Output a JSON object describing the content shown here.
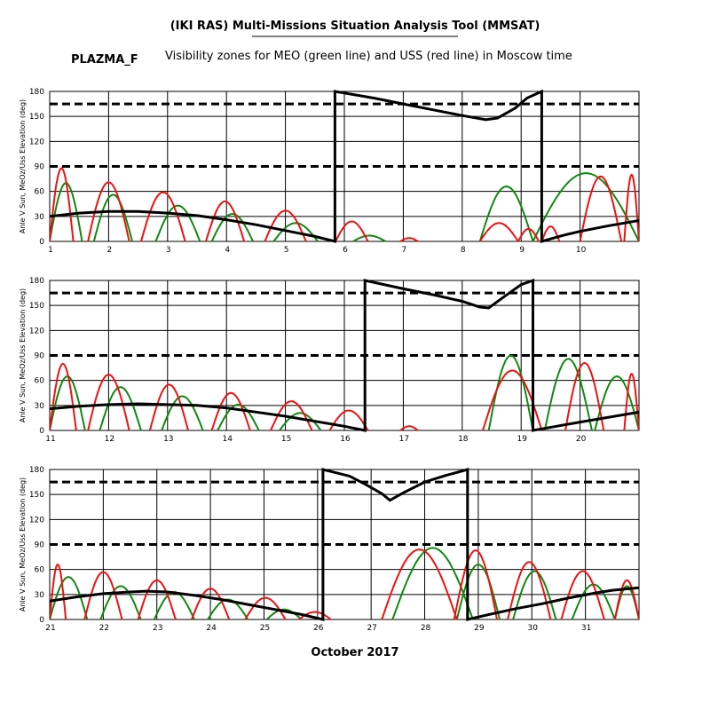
{
  "header": {
    "title": "(IKI RAS) Multi-Missions Situation Analysis Tool (MMSAT)",
    "tag": "PLAZMA_F",
    "subtitle": "Visibility zones for MEO (green line) and USS (red line) in Moscow time"
  },
  "colors": {
    "meo": "#118811",
    "uss": "#ee1111",
    "sun": "#000000",
    "grid": "#000000"
  },
  "chart_data": [
    {
      "type": "line",
      "xlabel": "",
      "ylabel": "Anle V Sun, MeOz/Uss Elevation (deg)",
      "xlim": [
        1,
        11
      ],
      "ylim": [
        0,
        180
      ],
      "x_ticks": [
        1,
        2,
        3,
        4,
        5,
        6,
        7,
        8,
        9,
        10
      ],
      "y_ticks": [
        0,
        30,
        60,
        90,
        120,
        150,
        180
      ],
      "dashed_levels": [
        90,
        165
      ],
      "sun_angle": [
        [
          1.0,
          30
        ],
        [
          1.5,
          34
        ],
        [
          2.0,
          36
        ],
        [
          2.5,
          36
        ],
        [
          3.0,
          34
        ],
        [
          3.5,
          31
        ],
        [
          4.0,
          26
        ],
        [
          4.5,
          20
        ],
        [
          5.0,
          13
        ],
        [
          5.5,
          6
        ],
        [
          5.84,
          0
        ],
        [
          5.84,
          180
        ],
        [
          6.5,
          172
        ],
        [
          7.0,
          165
        ],
        [
          7.5,
          158
        ],
        [
          8.0,
          151
        ],
        [
          8.4,
          146
        ],
        [
          8.6,
          148
        ],
        [
          8.9,
          160
        ],
        [
          9.1,
          172
        ],
        [
          9.35,
          180
        ],
        [
          9.35,
          0
        ],
        [
          9.7,
          7
        ],
        [
          10.0,
          12
        ],
        [
          10.5,
          19
        ],
        [
          11.0,
          25
        ]
      ],
      "meo_passes": [
        [
          1.0,
          1.55,
          70
        ],
        [
          1.75,
          2.4,
          56
        ],
        [
          2.8,
          3.55,
          43
        ],
        [
          3.75,
          4.45,
          33
        ],
        [
          4.8,
          5.55,
          22
        ],
        [
          6.15,
          6.7,
          7
        ],
        [
          8.3,
          9.2,
          66
        ],
        [
          9.2,
          11.0,
          82
        ]
      ],
      "uss_passes": [
        [
          1.0,
          1.4,
          88
        ],
        [
          1.65,
          2.35,
          71
        ],
        [
          2.55,
          3.3,
          59
        ],
        [
          3.65,
          4.3,
          48
        ],
        [
          4.65,
          5.35,
          37
        ],
        [
          5.85,
          6.4,
          24
        ],
        [
          6.95,
          7.25,
          4
        ],
        [
          8.3,
          8.95,
          22
        ],
        [
          8.95,
          9.3,
          15
        ],
        [
          9.35,
          9.65,
          18
        ],
        [
          10.0,
          10.7,
          78
        ],
        [
          10.75,
          11.0,
          80
        ]
      ]
    },
    {
      "type": "line",
      "xlabel": "",
      "ylabel": "Anle V Sun, MeOz/Uss Elevation (deg)",
      "xlim": [
        11,
        21
      ],
      "ylim": [
        0,
        180
      ],
      "x_ticks": [
        11,
        12,
        13,
        14,
        15,
        16,
        17,
        18,
        19,
        20
      ],
      "y_ticks": [
        0,
        30,
        60,
        90,
        120,
        150,
        180
      ],
      "dashed_levels": [
        90,
        165
      ],
      "sun_angle": [
        [
          11.0,
          26
        ],
        [
          11.5,
          29
        ],
        [
          12.0,
          31
        ],
        [
          12.5,
          32
        ],
        [
          13.0,
          31
        ],
        [
          13.5,
          30
        ],
        [
          14.0,
          27
        ],
        [
          14.5,
          22
        ],
        [
          15.0,
          17
        ],
        [
          15.5,
          11
        ],
        [
          16.0,
          5
        ],
        [
          16.35,
          0
        ],
        [
          16.35,
          180
        ],
        [
          17.0,
          170
        ],
        [
          17.5,
          163
        ],
        [
          18.0,
          155
        ],
        [
          18.3,
          148
        ],
        [
          18.45,
          147
        ],
        [
          18.7,
          160
        ],
        [
          19.0,
          175
        ],
        [
          19.2,
          180
        ],
        [
          19.2,
          0
        ],
        [
          19.6,
          5
        ],
        [
          20.0,
          10
        ],
        [
          20.5,
          16
        ],
        [
          21.0,
          22
        ]
      ],
      "meo_passes": [
        [
          11.0,
          11.6,
          65
        ],
        [
          11.85,
          12.55,
          52
        ],
        [
          12.9,
          13.6,
          41
        ],
        [
          13.85,
          14.55,
          31
        ],
        [
          14.9,
          15.6,
          21
        ],
        [
          18.45,
          19.2,
          90
        ],
        [
          19.4,
          20.2,
          86
        ],
        [
          20.25,
          21.0,
          65
        ]
      ],
      "uss_passes": [
        [
          11.0,
          11.45,
          80
        ],
        [
          11.65,
          12.35,
          67
        ],
        [
          12.7,
          13.35,
          55
        ],
        [
          13.75,
          14.4,
          45
        ],
        [
          14.75,
          15.45,
          35
        ],
        [
          15.75,
          16.4,
          24
        ],
        [
          16.95,
          17.25,
          5
        ],
        [
          18.35,
          19.35,
          72
        ],
        [
          19.75,
          20.4,
          81
        ],
        [
          20.75,
          21.0,
          68
        ]
      ]
    },
    {
      "type": "line",
      "xlabel": "October 2017",
      "ylabel": "Anle V Sun, MeOz/Uss Elevation (deg)",
      "xlim": [
        21,
        32
      ],
      "ylim": [
        0,
        180
      ],
      "x_ticks": [
        21,
        22,
        23,
        24,
        25,
        26,
        27,
        28,
        29,
        30,
        31
      ],
      "y_ticks": [
        0,
        30,
        60,
        90,
        120,
        150,
        180
      ],
      "dashed_levels": [
        90,
        165
      ],
      "sun_angle": [
        [
          21.0,
          22
        ],
        [
          21.5,
          27
        ],
        [
          22.0,
          31
        ],
        [
          22.5,
          33
        ],
        [
          22.8,
          34
        ],
        [
          23.2,
          33
        ],
        [
          23.7,
          29
        ],
        [
          24.2,
          24
        ],
        [
          24.7,
          18
        ],
        [
          25.2,
          12
        ],
        [
          25.7,
          6
        ],
        [
          26.1,
          0
        ],
        [
          26.1,
          180
        ],
        [
          26.6,
          172
        ],
        [
          26.9,
          162
        ],
        [
          27.2,
          151
        ],
        [
          27.35,
          143
        ],
        [
          27.6,
          152
        ],
        [
          28.0,
          165
        ],
        [
          28.4,
          173
        ],
        [
          28.8,
          180
        ],
        [
          28.8,
          0
        ],
        [
          29.2,
          6
        ],
        [
          29.7,
          13
        ],
        [
          30.2,
          19
        ],
        [
          30.7,
          26
        ],
        [
          31.2,
          32
        ],
        [
          31.5,
          35
        ],
        [
          32.0,
          38
        ]
      ],
      "meo_passes": [
        [
          21.0,
          21.7,
          51
        ],
        [
          21.95,
          22.7,
          40
        ],
        [
          22.95,
          23.7,
          33
        ],
        [
          23.95,
          24.7,
          24
        ],
        [
          25.05,
          25.7,
          12
        ],
        [
          27.4,
          28.9,
          86
        ],
        [
          28.6,
          29.4,
          66
        ],
        [
          29.65,
          30.45,
          58
        ],
        [
          30.75,
          31.55,
          42
        ],
        [
          31.55,
          32.0,
          40
        ]
      ],
      "uss_passes": [
        [
          21.0,
          21.3,
          66
        ],
        [
          21.65,
          22.35,
          57
        ],
        [
          22.65,
          23.35,
          47
        ],
        [
          23.65,
          24.35,
          37
        ],
        [
          24.65,
          25.4,
          26
        ],
        [
          25.65,
          26.25,
          9
        ],
        [
          27.2,
          28.6,
          84
        ],
        [
          28.55,
          29.35,
          83
        ],
        [
          29.55,
          30.35,
          69
        ],
        [
          30.55,
          31.35,
          58
        ],
        [
          31.55,
          32.0,
          47
        ]
      ]
    }
  ]
}
